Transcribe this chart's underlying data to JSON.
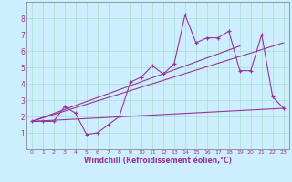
{
  "xlabel": "Windchill (Refroidissement éolien,°C)",
  "bg_color": "#cceeff",
  "line_color": "#993399",
  "grid_color": "#aaddcc",
  "xlim": [
    -0.5,
    23.5
  ],
  "ylim": [
    0,
    9
  ],
  "xticks": [
    0,
    1,
    2,
    3,
    4,
    5,
    6,
    7,
    8,
    9,
    10,
    11,
    12,
    13,
    14,
    15,
    16,
    17,
    18,
    19,
    20,
    21,
    22,
    23
  ],
  "yticks": [
    1,
    2,
    3,
    4,
    5,
    6,
    7,
    8
  ],
  "series1_x": [
    0,
    1,
    2,
    3,
    4,
    5,
    6,
    7,
    8,
    9,
    10,
    11,
    12,
    13,
    14,
    15,
    16,
    17,
    18,
    19,
    20,
    21,
    22,
    23
  ],
  "series1_y": [
    1.7,
    1.7,
    1.7,
    2.6,
    2.2,
    0.9,
    1.0,
    1.5,
    2.0,
    4.1,
    4.4,
    5.1,
    4.6,
    5.2,
    8.2,
    6.5,
    6.8,
    6.8,
    7.2,
    4.8,
    4.8,
    7.0,
    3.2,
    2.5
  ],
  "line2_x": [
    0,
    23
  ],
  "line2_y": [
    1.7,
    2.5
  ],
  "line3_x": [
    0,
    19
  ],
  "line3_y": [
    1.7,
    6.3
  ],
  "line4_x": [
    0,
    23
  ],
  "line4_y": [
    1.7,
    6.5
  ]
}
